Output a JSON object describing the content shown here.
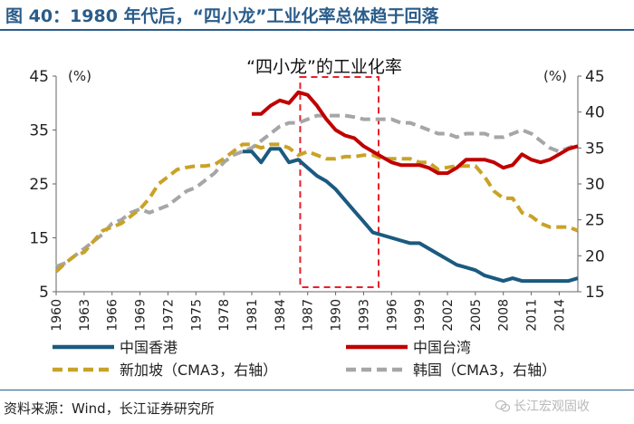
{
  "figure_title": "图 40：1980 年代后，“四小龙”工业化率总体趋于回落",
  "source_note": "资料来源：Wind，长江证券研究所",
  "watermark": "长江宏观固收",
  "colors": {
    "hong_kong": "#1b5a80",
    "taiwan": "#c00000",
    "singapore": "#c9a227",
    "korea": "#a6a6a6",
    "highlight_box": "#e8202a",
    "brand_blue": "#2a5c8a"
  },
  "chart_data": {
    "type": "line",
    "title": "“四小龙”的工业化率",
    "ylabel_left": "(%)",
    "ylabel_right": "(%)",
    "ylim_left": [
      5,
      45
    ],
    "ylim_right": [
      15,
      45
    ],
    "yticks_left": [
      "5",
      "15",
      "25",
      "35",
      "45"
    ],
    "yticks_right": [
      "15",
      "20",
      "25",
      "30",
      "35",
      "40",
      "45"
    ],
    "xlim": [
      1960,
      2016
    ],
    "xticks": [
      "1960",
      "1963",
      "1966",
      "1969",
      "1972",
      "1975",
      "1978",
      "1981",
      "1984",
      "1987",
      "1990",
      "1993",
      "1996",
      "1999",
      "2002",
      "2005",
      "2008",
      "2011",
      "2014"
    ],
    "highlight_range": [
      1986,
      1995
    ],
    "series": [
      {
        "name": "中国香港",
        "axis": "left",
        "style": "solid",
        "color_key": "hong_kong",
        "points": [
          [
            1980,
            31
          ],
          [
            1981,
            31
          ],
          [
            1982,
            29
          ],
          [
            1983,
            31.5
          ],
          [
            1984,
            31.5
          ],
          [
            1985,
            29
          ],
          [
            1986,
            29.5
          ],
          [
            1987,
            28
          ],
          [
            1988,
            26.5
          ],
          [
            1989,
            25.5
          ],
          [
            1990,
            24
          ],
          [
            1991,
            22
          ],
          [
            1992,
            20
          ],
          [
            1993,
            18
          ],
          [
            1994,
            16
          ],
          [
            1995,
            15.5
          ],
          [
            1996,
            15
          ],
          [
            1997,
            14.5
          ],
          [
            1998,
            14
          ],
          [
            1999,
            14
          ],
          [
            2000,
            13
          ],
          [
            2001,
            12
          ],
          [
            2002,
            11
          ],
          [
            2003,
            10
          ],
          [
            2004,
            9.5
          ],
          [
            2005,
            9
          ],
          [
            2006,
            8
          ],
          [
            2007,
            7.5
          ],
          [
            2008,
            7
          ],
          [
            2009,
            7.5
          ],
          [
            2010,
            7
          ],
          [
            2011,
            7
          ],
          [
            2012,
            7
          ],
          [
            2013,
            7
          ],
          [
            2014,
            7
          ],
          [
            2015,
            7
          ],
          [
            2016,
            7.5
          ]
        ]
      },
      {
        "name": "中国台湾",
        "axis": "left",
        "style": "solid",
        "color_key": "taiwan",
        "points": [
          [
            1981,
            38
          ],
          [
            1982,
            38
          ],
          [
            1983,
            39.5
          ],
          [
            1984,
            40.5
          ],
          [
            1985,
            40
          ],
          [
            1986,
            42
          ],
          [
            1987,
            41.5
          ],
          [
            1988,
            39.5
          ],
          [
            1989,
            37
          ],
          [
            1990,
            35
          ],
          [
            1991,
            34
          ],
          [
            1992,
            33.5
          ],
          [
            1993,
            32
          ],
          [
            1994,
            31
          ],
          [
            1995,
            30
          ],
          [
            1996,
            29
          ],
          [
            1997,
            28.5
          ],
          [
            1998,
            28.5
          ],
          [
            1999,
            28.5
          ],
          [
            2000,
            28
          ],
          [
            2001,
            27
          ],
          [
            2002,
            27
          ],
          [
            2003,
            28
          ],
          [
            2004,
            29.5
          ],
          [
            2005,
            29.5
          ],
          [
            2006,
            29.5
          ],
          [
            2007,
            29
          ],
          [
            2008,
            28
          ],
          [
            2009,
            28.5
          ],
          [
            2010,
            30.5
          ],
          [
            2011,
            29.5
          ],
          [
            2012,
            29
          ],
          [
            2013,
            29.5
          ],
          [
            2014,
            30.5
          ],
          [
            2015,
            31.5
          ],
          [
            2016,
            32
          ]
        ]
      },
      {
        "name": "新加坡（CMA3，右轴）",
        "axis": "right",
        "style": "dashed",
        "color_key": "singapore",
        "points": [
          [
            1960,
            17.8
          ],
          [
            1961,
            19
          ],
          [
            1962,
            20
          ],
          [
            1963,
            20.5
          ],
          [
            1964,
            22
          ],
          [
            1965,
            23.5
          ],
          [
            1966,
            24
          ],
          [
            1967,
            24.5
          ],
          [
            1968,
            25.5
          ],
          [
            1969,
            26.5
          ],
          [
            1970,
            28
          ],
          [
            1971,
            30
          ],
          [
            1972,
            31
          ],
          [
            1973,
            32
          ],
          [
            1974,
            32.3
          ],
          [
            1975,
            32.5
          ],
          [
            1976,
            32.5
          ],
          [
            1977,
            32.7
          ],
          [
            1978,
            33.5
          ],
          [
            1979,
            34.5
          ],
          [
            1980,
            35.5
          ],
          [
            1981,
            35.5
          ],
          [
            1982,
            35
          ],
          [
            1983,
            35.5
          ],
          [
            1984,
            35.5
          ],
          [
            1985,
            35
          ],
          [
            1986,
            34
          ],
          [
            1987,
            34.5
          ],
          [
            1988,
            34
          ],
          [
            1989,
            33.5
          ],
          [
            1990,
            33.5
          ],
          [
            1991,
            33.8
          ],
          [
            1992,
            33.8
          ],
          [
            1993,
            34
          ],
          [
            1994,
            34
          ],
          [
            1995,
            33.5
          ],
          [
            1996,
            33.5
          ],
          [
            1997,
            33.5
          ],
          [
            1998,
            33.5
          ],
          [
            1999,
            33
          ],
          [
            2000,
            33
          ],
          [
            2001,
            32
          ],
          [
            2002,
            32.3
          ],
          [
            2003,
            32.5
          ],
          [
            2004,
            32.5
          ],
          [
            2005,
            32.5
          ],
          [
            2006,
            31
          ],
          [
            2007,
            29
          ],
          [
            2008,
            28
          ],
          [
            2009,
            28
          ],
          [
            2010,
            26
          ],
          [
            2011,
            25.5
          ],
          [
            2012,
            24.5
          ],
          [
            2013,
            24
          ],
          [
            2014,
            24
          ],
          [
            2015,
            24
          ],
          [
            2016,
            23.5
          ]
        ]
      },
      {
        "name": "韩国（CMA3，右轴）",
        "axis": "right",
        "style": "dashed",
        "color_key": "korea",
        "points": [
          [
            1960,
            18.5
          ],
          [
            1961,
            19
          ],
          [
            1962,
            20
          ],
          [
            1963,
            21
          ],
          [
            1964,
            22
          ],
          [
            1965,
            23
          ],
          [
            1966,
            24.5
          ],
          [
            1967,
            25
          ],
          [
            1968,
            26
          ],
          [
            1969,
            26.5
          ],
          [
            1970,
            26
          ],
          [
            1971,
            26.5
          ],
          [
            1972,
            27
          ],
          [
            1973,
            28
          ],
          [
            1974,
            29
          ],
          [
            1975,
            29.5
          ],
          [
            1976,
            30.5
          ],
          [
            1977,
            31.5
          ],
          [
            1978,
            33
          ],
          [
            1979,
            34
          ],
          [
            1980,
            34.5
          ],
          [
            1981,
            35
          ],
          [
            1982,
            36
          ],
          [
            1983,
            37
          ],
          [
            1984,
            38
          ],
          [
            1985,
            38.5
          ],
          [
            1986,
            38.5
          ],
          [
            1987,
            39
          ],
          [
            1988,
            39.5
          ],
          [
            1989,
            39.5
          ],
          [
            1990,
            39.5
          ],
          [
            1991,
            39.5
          ],
          [
            1992,
            39.3
          ],
          [
            1993,
            39
          ],
          [
            1994,
            39
          ],
          [
            1995,
            39
          ],
          [
            1996,
            39
          ],
          [
            1997,
            38.5
          ],
          [
            1998,
            38.5
          ],
          [
            1999,
            38
          ],
          [
            2000,
            37.5
          ],
          [
            2001,
            37
          ],
          [
            2002,
            37
          ],
          [
            2003,
            36.5
          ],
          [
            2004,
            37
          ],
          [
            2005,
            37
          ],
          [
            2006,
            37
          ],
          [
            2007,
            36.5
          ],
          [
            2008,
            36.5
          ],
          [
            2009,
            37
          ],
          [
            2010,
            37.5
          ],
          [
            2011,
            37
          ],
          [
            2012,
            36
          ],
          [
            2013,
            35
          ],
          [
            2014,
            34.5
          ],
          [
            2015,
            35
          ],
          [
            2016,
            35.5
          ]
        ]
      }
    ],
    "legend": [
      {
        "label": "中国香港",
        "color_key": "hong_kong",
        "style": "solid"
      },
      {
        "label": "中国台湾",
        "color_key": "taiwan",
        "style": "solid"
      },
      {
        "label": "新加坡（CMA3，右轴）",
        "color_key": "singapore",
        "style": "dashed"
      },
      {
        "label": "韩国（CMA3，右轴）",
        "color_key": "korea",
        "style": "dashed"
      }
    ]
  }
}
